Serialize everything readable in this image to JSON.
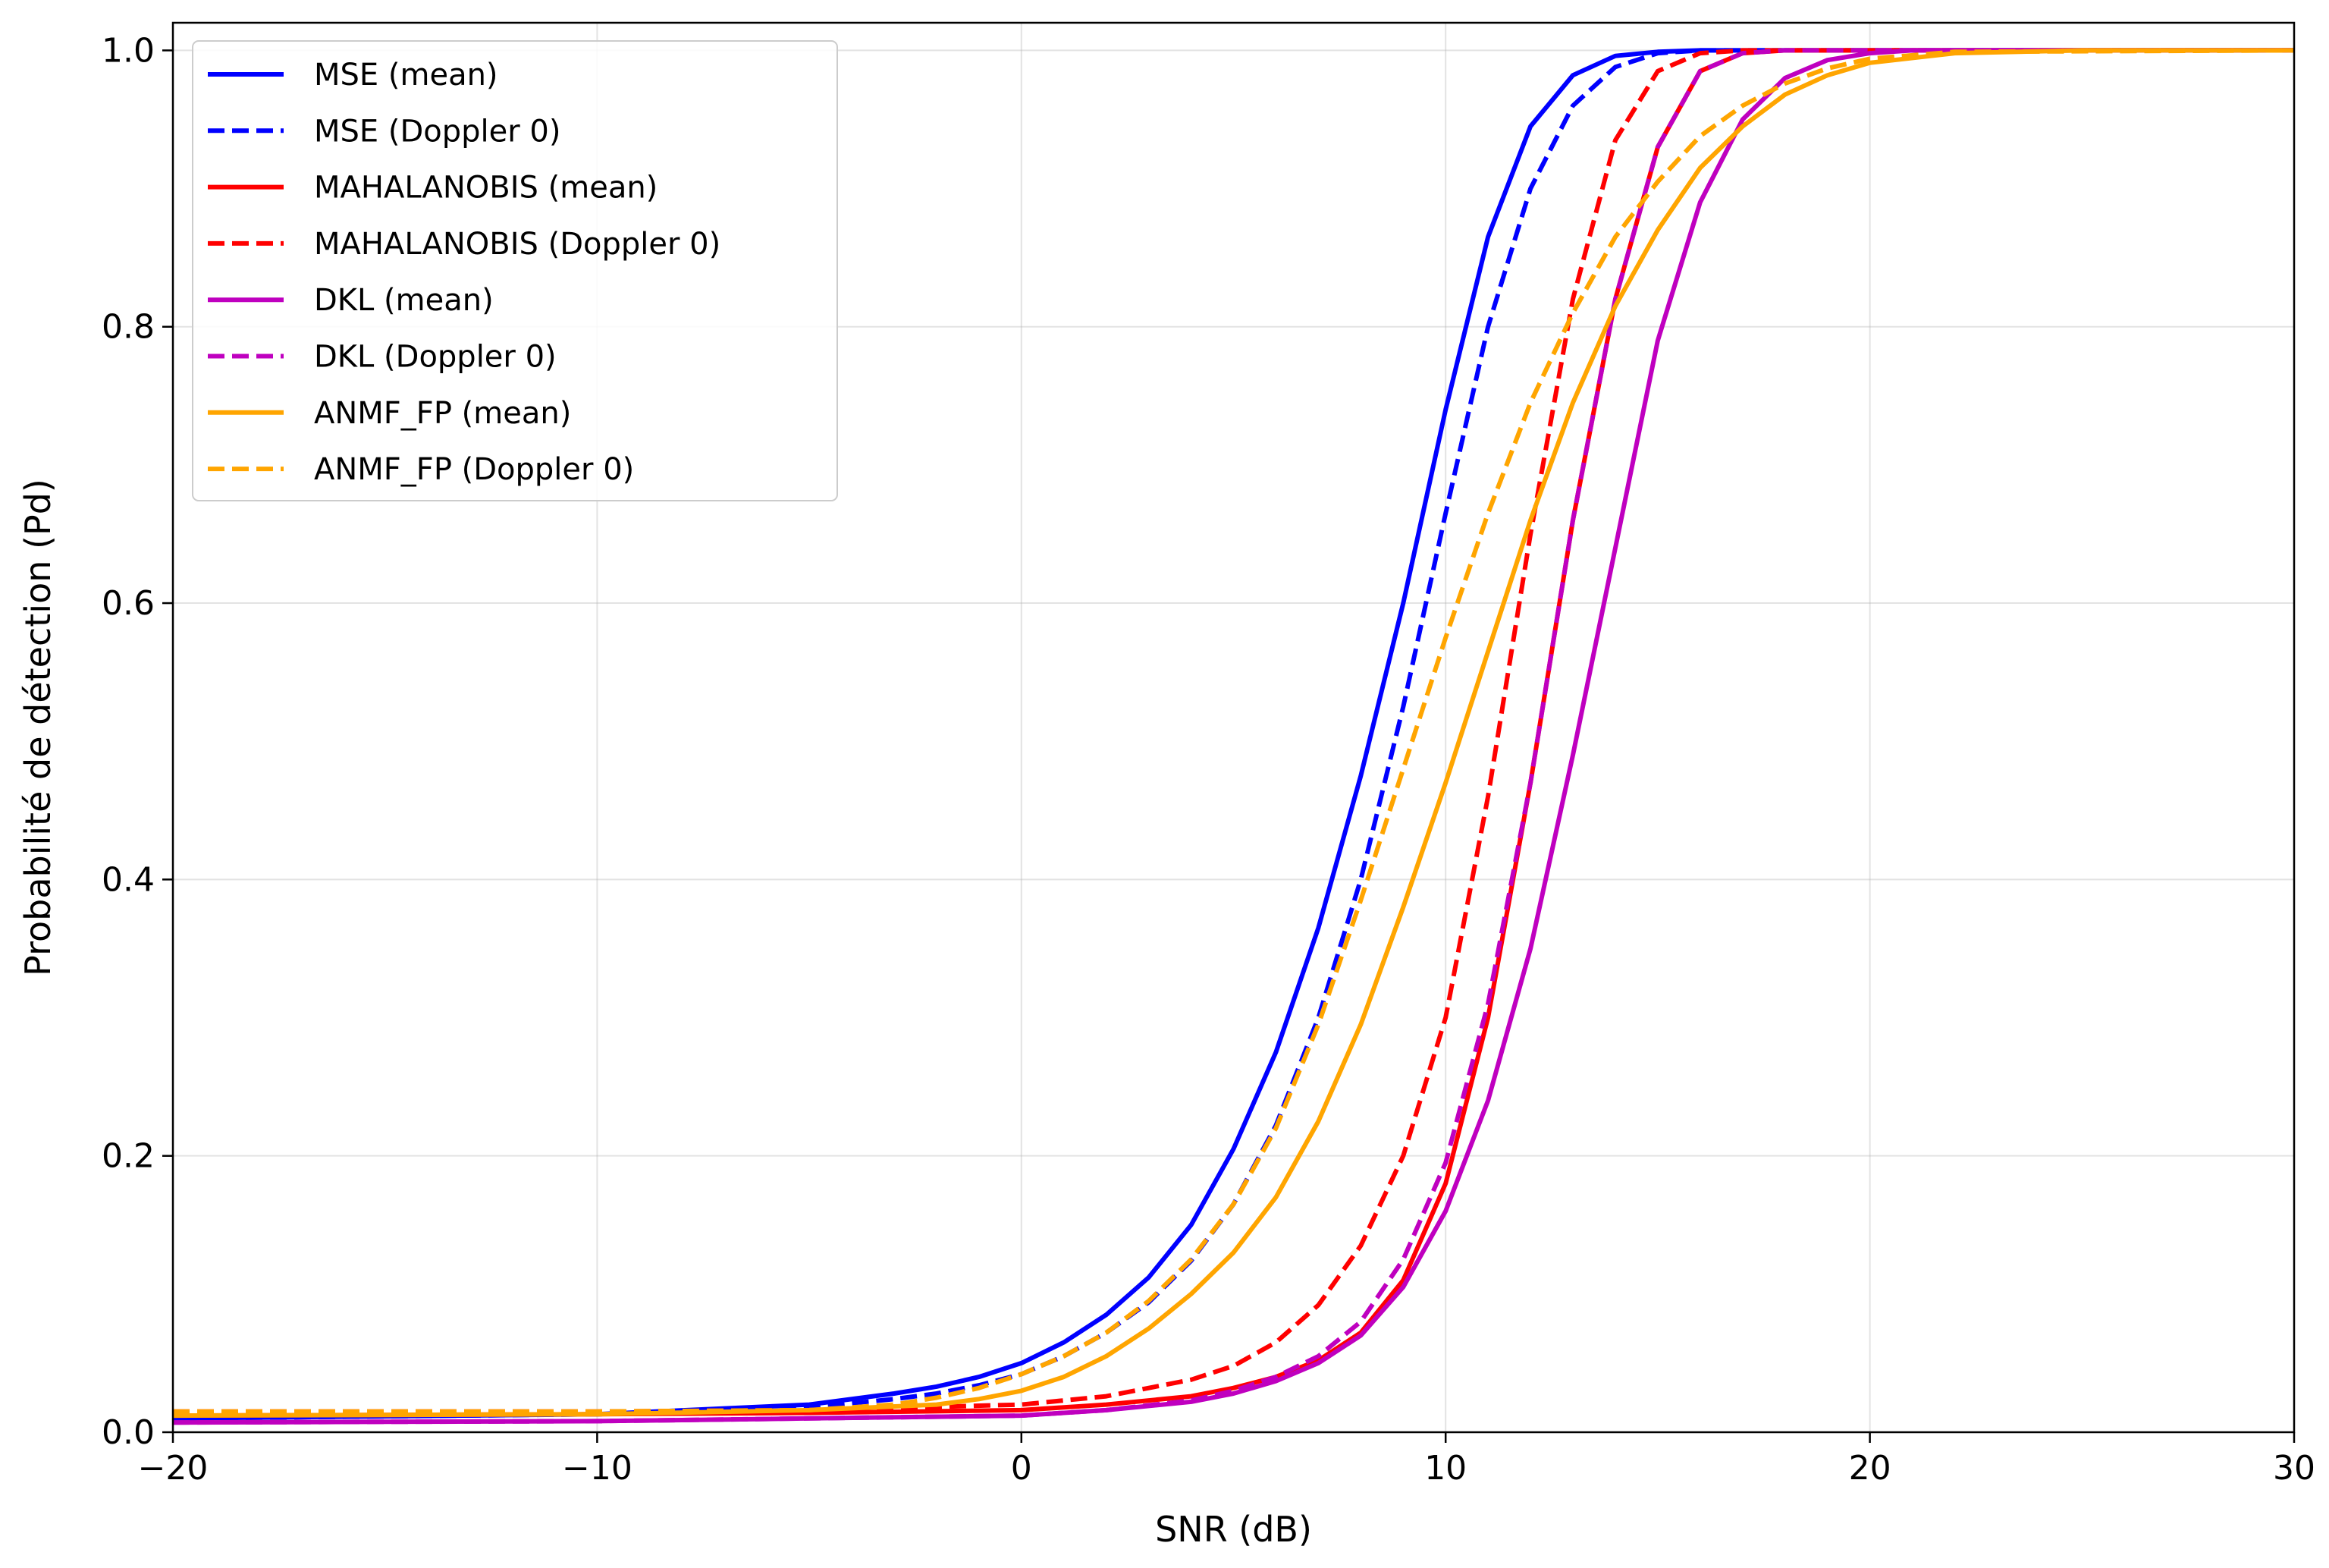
{
  "chart_data": {
    "type": "line",
    "title": "",
    "xlabel": "SNR (dB)",
    "ylabel": "Probabilité de détection (Pd)",
    "xlim": [
      -20,
      30
    ],
    "ylim": [
      0,
      1.02
    ],
    "xticks": [
      -20,
      -10,
      0,
      10,
      20,
      30
    ],
    "xtick_labels": [
      "−20",
      "−10",
      "0",
      "10",
      "20",
      "30"
    ],
    "yticks": [
      0,
      0.2,
      0.4,
      0.6,
      0.8,
      1.0
    ],
    "ytick_labels": [
      "0.0",
      "0.2",
      "0.4",
      "0.6",
      "0.8",
      "1.0"
    ],
    "grid": true,
    "legend_position": "top-left",
    "series": [
      {
        "name": "MSE (mean)",
        "color": "#0000ff",
        "style": "solid",
        "x": [
          -20,
          -10,
          -5,
          -3,
          -2,
          -1,
          0,
          1,
          2,
          3,
          4,
          5,
          6,
          7,
          8,
          9,
          10,
          11,
          12,
          13,
          14,
          15,
          16,
          20,
          30
        ],
        "y": [
          0.01,
          0.013,
          0.02,
          0.028,
          0.033,
          0.04,
          0.05,
          0.065,
          0.085,
          0.112,
          0.15,
          0.205,
          0.275,
          0.365,
          0.475,
          0.6,
          0.74,
          0.865,
          0.945,
          0.982,
          0.996,
          0.999,
          1.0,
          1.0,
          1.0
        ]
      },
      {
        "name": "MSE (Doppler 0)",
        "color": "#0000ff",
        "style": "dashed",
        "x": [
          -20,
          -10,
          -5,
          -3,
          -2,
          -1,
          0,
          1,
          2,
          3,
          4,
          5,
          6,
          7,
          8,
          9,
          10,
          11,
          12,
          13,
          14,
          15,
          16,
          20,
          30
        ],
        "y": [
          0.01,
          0.013,
          0.018,
          0.024,
          0.028,
          0.034,
          0.042,
          0.055,
          0.072,
          0.094,
          0.124,
          0.165,
          0.222,
          0.3,
          0.4,
          0.525,
          0.665,
          0.8,
          0.9,
          0.96,
          0.988,
          0.998,
          1.0,
          1.0,
          1.0
        ]
      },
      {
        "name": "MAHALANOBIS (mean)",
        "color": "#ff0000",
        "style": "solid",
        "x": [
          -20,
          -10,
          -5,
          0,
          2,
          4,
          5,
          6,
          7,
          8,
          9,
          10,
          11,
          12,
          13,
          14,
          15,
          16,
          17,
          18,
          20,
          30
        ],
        "y": [
          0.012,
          0.013,
          0.014,
          0.016,
          0.02,
          0.026,
          0.032,
          0.04,
          0.052,
          0.072,
          0.11,
          0.18,
          0.3,
          0.47,
          0.66,
          0.82,
          0.93,
          0.985,
          0.998,
          1.0,
          1.0,
          1.0
        ]
      },
      {
        "name": "MAHALANOBIS (Doppler 0)",
        "color": "#ff0000",
        "style": "dashed",
        "x": [
          -20,
          -10,
          -5,
          0,
          2,
          4,
          5,
          6,
          7,
          8,
          9,
          10,
          11,
          12,
          13,
          14,
          15,
          16,
          17,
          20,
          30
        ],
        "y": [
          0.015,
          0.015,
          0.016,
          0.02,
          0.026,
          0.038,
          0.048,
          0.065,
          0.092,
          0.135,
          0.2,
          0.3,
          0.46,
          0.65,
          0.82,
          0.935,
          0.985,
          0.998,
          1.0,
          1.0,
          1.0
        ]
      },
      {
        "name": "DKL (mean)",
        "color": "#bf00bf",
        "style": "solid",
        "x": [
          -20,
          -10,
          -5,
          0,
          2,
          4,
          5,
          6,
          7,
          8,
          9,
          10,
          11,
          12,
          13,
          14,
          15,
          16,
          17,
          18,
          19,
          20,
          21,
          30
        ],
        "y": [
          0.007,
          0.008,
          0.01,
          0.012,
          0.016,
          0.022,
          0.028,
          0.037,
          0.05,
          0.07,
          0.105,
          0.16,
          0.24,
          0.35,
          0.49,
          0.64,
          0.79,
          0.89,
          0.95,
          0.98,
          0.993,
          0.998,
          1.0,
          1.0
        ]
      },
      {
        "name": "DKL (Doppler 0)",
        "color": "#bf00bf",
        "style": "dashed",
        "x": [
          -20,
          -10,
          -5,
          0,
          2,
          4,
          5,
          6,
          7,
          8,
          9,
          10,
          11,
          12,
          13,
          14,
          15,
          16,
          17,
          18,
          20,
          30
        ],
        "y": [
          0.007,
          0.008,
          0.01,
          0.012,
          0.016,
          0.023,
          0.03,
          0.04,
          0.055,
          0.08,
          0.125,
          0.195,
          0.31,
          0.47,
          0.66,
          0.82,
          0.93,
          0.985,
          0.998,
          1.0,
          1.0,
          1.0
        ]
      },
      {
        "name": "ANMF_FP (mean)",
        "color": "#ffa500",
        "style": "solid",
        "x": [
          -20,
          -10,
          -5,
          -2,
          -1,
          0,
          1,
          2,
          3,
          4,
          5,
          6,
          7,
          8,
          9,
          10,
          11,
          12,
          13,
          14,
          15,
          16,
          17,
          18,
          19,
          20,
          22,
          25,
          30
        ],
        "y": [
          0.012,
          0.013,
          0.016,
          0.02,
          0.024,
          0.03,
          0.04,
          0.055,
          0.075,
          0.1,
          0.13,
          0.17,
          0.225,
          0.295,
          0.38,
          0.47,
          0.565,
          0.66,
          0.745,
          0.815,
          0.87,
          0.915,
          0.945,
          0.968,
          0.982,
          0.991,
          0.998,
          1.0,
          1.0
        ]
      },
      {
        "name": "ANMF_FP (Doppler 0)",
        "color": "#ffa500",
        "style": "dashed",
        "x": [
          -20,
          -10,
          -5,
          -3,
          -2,
          -1,
          0,
          1,
          2,
          3,
          4,
          5,
          6,
          7,
          8,
          9,
          10,
          11,
          12,
          13,
          14,
          15,
          16,
          17,
          18,
          19,
          20,
          22,
          30
        ],
        "y": [
          0.015,
          0.015,
          0.016,
          0.02,
          0.025,
          0.032,
          0.042,
          0.055,
          0.072,
          0.095,
          0.125,
          0.165,
          0.22,
          0.295,
          0.385,
          0.48,
          0.575,
          0.665,
          0.745,
          0.81,
          0.865,
          0.905,
          0.938,
          0.96,
          0.976,
          0.987,
          0.994,
          0.999,
          1.0
        ]
      }
    ]
  }
}
